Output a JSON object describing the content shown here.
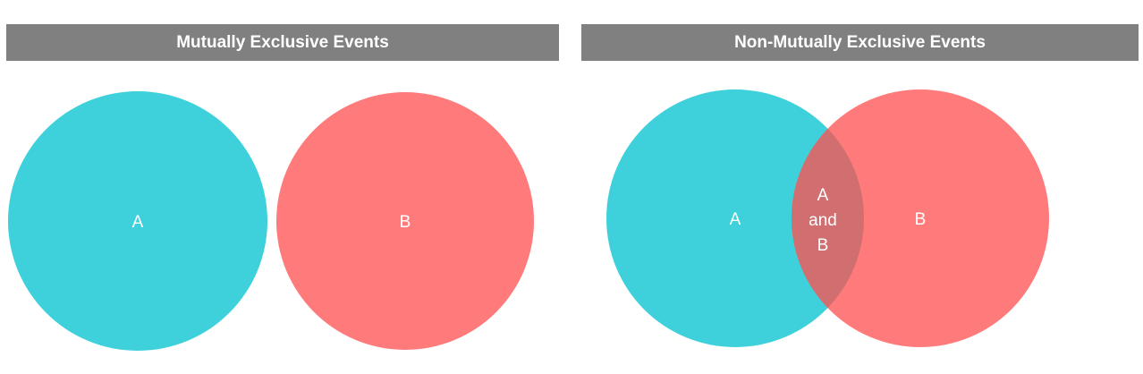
{
  "left_panel": {
    "title": "Mutually Exclusive Events",
    "set_a_label": "A",
    "set_b_label": "B"
  },
  "right_panel": {
    "title": "Non-Mutually Exclusive Events",
    "set_a_label": "A",
    "set_b_label": "B",
    "intersection_lines": [
      "A",
      "and",
      "B"
    ]
  },
  "colors": {
    "header_background": "#808080",
    "header_text": "#ffffff",
    "set_a": "#3ed1dc",
    "set_b": "#ff7b7b",
    "intersection": "#d16f70",
    "label_text": "#ffffff"
  }
}
